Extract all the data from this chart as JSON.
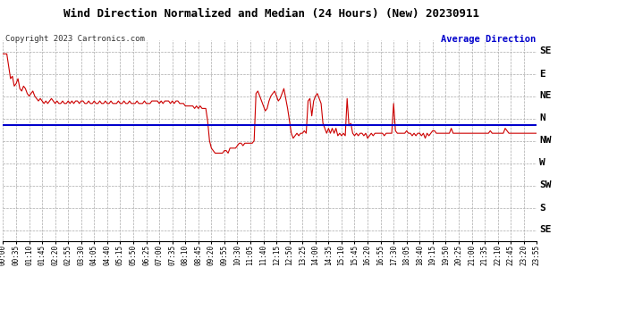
{
  "title": "Wind Direction Normalized and Median (24 Hours) (New) 20230911",
  "copyright": "Copyright 2023 Cartronics.com",
  "legend_text": "Average Direction",
  "background_color": "#ffffff",
  "plot_bg_color": "#ffffff",
  "grid_color": "#aaaaaa",
  "title_fontsize": 9,
  "y_labels": [
    "SE",
    "E",
    "NE",
    "N",
    "NW",
    "W",
    "SW",
    "S",
    "SE"
  ],
  "y_values": [
    0,
    45,
    90,
    135,
    180,
    225,
    270,
    315,
    360
  ],
  "y_min": -22.5,
  "y_max": 382.5,
  "average_direction": 148,
  "line_color": "#cc0000",
  "avg_line_color": "#0000cc",
  "wind_data": [
    5,
    5,
    5,
    30,
    55,
    50,
    70,
    65,
    55,
    75,
    80,
    70,
    75,
    85,
    90,
    85,
    80,
    90,
    95,
    100,
    95,
    100,
    105,
    100,
    105,
    100,
    95,
    100,
    105,
    100,
    105,
    105,
    100,
    105,
    105,
    100,
    105,
    100,
    105,
    100,
    100,
    105,
    100,
    100,
    105,
    105,
    100,
    105,
    105,
    100,
    105,
    105,
    100,
    105,
    105,
    100,
    105,
    105,
    100,
    105,
    105,
    105,
    100,
    105,
    105,
    100,
    105,
    105,
    100,
    105,
    105,
    105,
    100,
    105,
    105,
    105,
    100,
    105,
    105,
    105,
    100,
    100,
    100,
    100,
    105,
    100,
    105,
    100,
    100,
    100,
    105,
    100,
    105,
    100,
    100,
    105,
    105,
    105,
    110,
    110,
    110,
    110,
    110,
    115,
    110,
    115,
    110,
    115,
    115,
    115,
    140,
    180,
    195,
    200,
    205,
    205,
    205,
    205,
    205,
    200,
    200,
    205,
    195,
    195,
    195,
    195,
    190,
    185,
    185,
    190,
    185,
    185,
    185,
    185,
    185,
    180,
    85,
    80,
    90,
    100,
    110,
    120,
    115,
    100,
    90,
    85,
    80,
    90,
    100,
    95,
    85,
    75,
    95,
    115,
    140,
    165,
    175,
    170,
    165,
    170,
    165,
    165,
    160,
    165,
    100,
    95,
    130,
    100,
    90,
    85,
    95,
    105,
    145,
    155,
    165,
    155,
    165,
    155,
    165,
    155,
    170,
    165,
    170,
    165,
    170,
    95,
    150,
    145,
    165,
    170,
    165,
    170,
    165,
    165,
    170,
    165,
    175,
    170,
    165,
    170,
    165,
    165,
    165,
    165,
    165,
    170,
    165,
    165,
    165,
    165,
    105,
    160,
    165,
    165,
    165,
    165,
    165,
    160,
    165,
    165,
    170,
    165,
    170,
    165,
    165,
    170,
    165,
    175,
    165,
    170,
    165,
    160,
    160,
    165,
    165,
    165,
    165,
    165,
    165,
    165,
    165,
    155,
    165,
    165,
    165,
    165,
    165,
    165,
    165,
    165,
    165,
    165,
    165,
    165,
    165,
    165,
    165,
    165,
    165,
    165,
    165,
    165,
    160,
    165,
    165,
    165,
    165,
    165,
    165,
    165,
    155,
    160,
    165,
    165,
    165,
    165,
    165,
    165,
    165,
    165,
    165,
    165,
    165,
    165,
    165,
    165,
    165,
    165
  ]
}
